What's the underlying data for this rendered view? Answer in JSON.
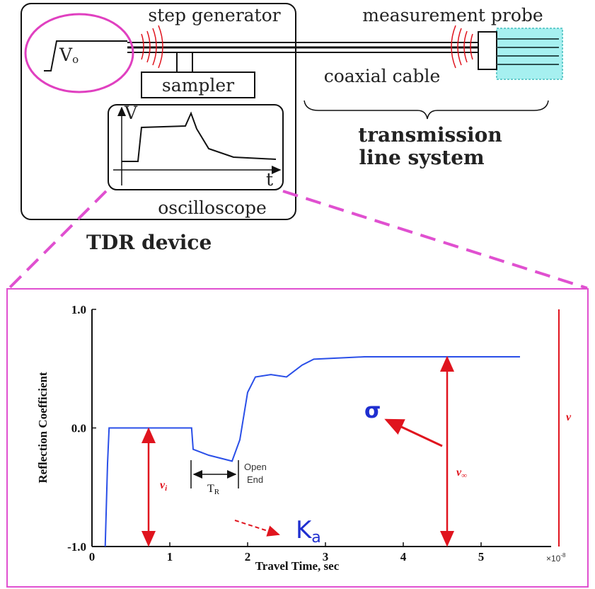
{
  "diagram": {
    "step_generator": "step generator",
    "measurement_probe": "measurement probe",
    "step_voltage": {
      "main": "V",
      "sub": "o"
    },
    "sampler": "sampler",
    "coaxial_cable": "coaxial cable",
    "transmission_line": [
      "transmission",
      "line system"
    ],
    "scope_v": "V",
    "scope_t": "t",
    "oscilloscope": "oscilloscope",
    "tdr_device": "TDR device"
  },
  "chart_data": {
    "type": "line",
    "xlabel": "Travel Time, sec",
    "ylabel": "Reflection Coefficient",
    "x_multiplier": {
      "base": "×10",
      "exp": "-8"
    },
    "xlim": [
      0,
      5.9
    ],
    "ylim": [
      -1,
      1
    ],
    "xticks": [
      0,
      1,
      2,
      3,
      4,
      5
    ],
    "yticks": [
      {
        "value": -1,
        "label": "-1.0"
      },
      {
        "value": 0,
        "label": "0.0"
      },
      {
        "value": 1,
        "label": "1.0"
      }
    ],
    "series": [
      {
        "color": "#2a4fe8",
        "x": [
          0.17,
          0.2,
          0.22,
          1.28,
          1.3,
          1.5,
          1.8,
          1.9,
          2.0,
          2.1,
          2.3,
          2.5,
          2.7,
          2.85,
          3.5,
          5.5
        ],
        "values": [
          -1.0,
          -0.3,
          0,
          0,
          -0.18,
          -0.23,
          -0.28,
          -0.1,
          0.3,
          0.43,
          0.45,
          0.43,
          0.53,
          0.58,
          0.6,
          0.6
        ]
      }
    ],
    "annotations": {
      "sigma": "σ",
      "ka": {
        "main": "K",
        "sub": "a"
      },
      "tr": {
        "main": "T",
        "sub": "R"
      },
      "open_end": [
        "Open",
        "End"
      ],
      "vi": {
        "main": "v",
        "sub": "i"
      },
      "vinf": {
        "main": "v",
        "sub": "∞"
      },
      "v": "v"
    }
  }
}
